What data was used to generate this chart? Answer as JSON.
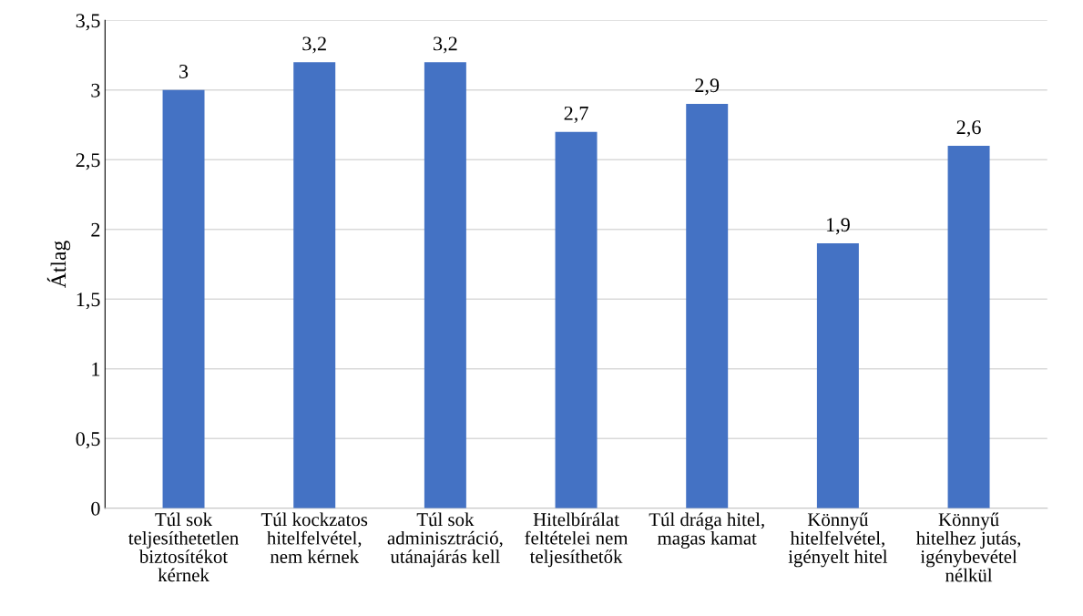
{
  "chart_data": {
    "type": "bar",
    "ylabel": "Átlag",
    "categories": [
      "Túl sok\nteljesíthetetlen\nbiztosítékot\nkérnek",
      "Túl kockzatos\nhitelfelvétel,\nnem kérnek",
      "Túl sok\nadminisztráció,\nutánajárás kell",
      "Hitelbírálat\nfeltételei nem\nteljesíthetők",
      "Túl drága hitel,\nmagas kamat",
      "Könnyű\nhitelfelvétel,\nigényelt hitel",
      "Könnyű\nhitelhez jutás,\nigénybevétel\nnélkül"
    ],
    "values": [
      3,
      3.2,
      3.2,
      2.7,
      2.9,
      1.9,
      2.6
    ],
    "value_labels": [
      "3",
      "3,2",
      "3,2",
      "2,7",
      "2,9",
      "1,9",
      "2,6"
    ],
    "color": "#4472c4",
    "ylim": [
      0,
      3.5
    ],
    "yticks": [
      0,
      {
        "value": 0.5,
        "label": "0,5"
      },
      1,
      {
        "value": 1.5,
        "label": "1,5"
      },
      2,
      {
        "value": 2.5,
        "label": "2,5"
      },
      3,
      {
        "value": 3.5,
        "label": "3,5"
      }
    ],
    "grid": "y",
    "legend": false
  }
}
